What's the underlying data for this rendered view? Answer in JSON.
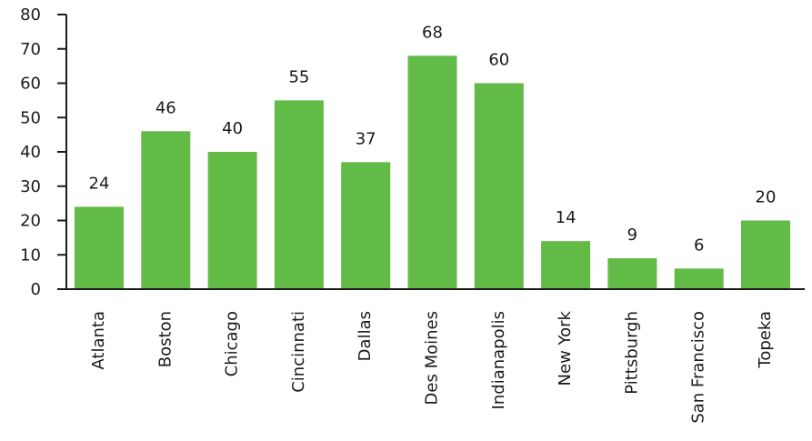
{
  "chart_data": {
    "type": "bar",
    "categories": [
      "Atlanta",
      "Boston",
      "Chicago",
      "Cincinnati",
      "Dallas",
      "Des Moines",
      "Indianapolis",
      "New York",
      "Pittsburgh",
      "San Francisco",
      "Topeka"
    ],
    "values": [
      24,
      46,
      40,
      55,
      37,
      68,
      60,
      14,
      9,
      6,
      20
    ],
    "data_labels": [
      "24",
      "46",
      "40",
      "55",
      "37",
      "68",
      "60",
      "14",
      "9",
      "6",
      "20"
    ],
    "y_ticks": [
      "0",
      "10",
      "20",
      "30",
      "40",
      "50",
      "60",
      "70",
      "80"
    ],
    "title": "",
    "xlabel": "",
    "ylabel": "",
    "ylim": [
      0,
      80
    ],
    "grid": false,
    "legend": "none",
    "bar_color": "#62bb46",
    "axis_color": "#1a1a1a"
  }
}
